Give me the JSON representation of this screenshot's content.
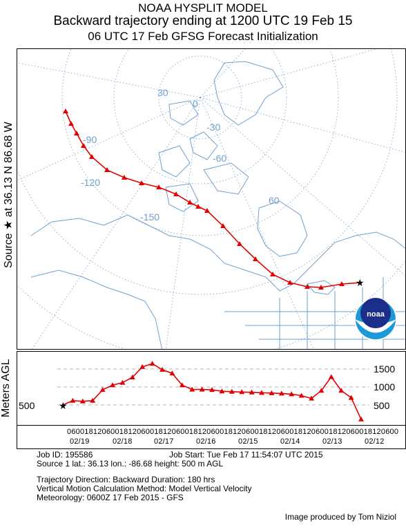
{
  "header": {
    "line1": "NOAA HYSPLIT MODEL",
    "line2": "Backward trajectory ending at 1200 UTC 19 Feb 15",
    "line3": "06 UTC 17 Feb    GFSG  Forecast Initialization"
  },
  "side_labels": {
    "source_line": "Source ★ at  36.13 N  86.68 W",
    "height_axis": "Meters AGL"
  },
  "map": {
    "grid_labels": [
      "30",
      "0",
      "-30",
      "-60",
      "-90",
      "-120",
      "-150",
      "60"
    ],
    "colors": {
      "coast": "#6f9fd0",
      "grid": "#6f9fd0",
      "trajectory": "#e00000",
      "source_marker": "#000000"
    },
    "logo_text": "noaa"
  },
  "height_chart": {
    "ticks": [
      "1500",
      "1000",
      "500"
    ],
    "start_label": "500",
    "series": [
      {
        "t": 0,
        "h": 500
      },
      {
        "t": 6,
        "h": 620
      },
      {
        "t": 12,
        "h": 600
      },
      {
        "t": 18,
        "h": 620
      },
      {
        "t": 24,
        "h": 920
      },
      {
        "t": 30,
        "h": 1050
      },
      {
        "t": 36,
        "h": 1120
      },
      {
        "t": 42,
        "h": 1270
      },
      {
        "t": 48,
        "h": 1560
      },
      {
        "t": 54,
        "h": 1650
      },
      {
        "t": 60,
        "h": 1480
      },
      {
        "t": 66,
        "h": 1380
      },
      {
        "t": 72,
        "h": 1050
      },
      {
        "t": 78,
        "h": 930
      },
      {
        "t": 84,
        "h": 930
      },
      {
        "t": 90,
        "h": 920
      },
      {
        "t": 96,
        "h": 880
      },
      {
        "t": 102,
        "h": 870
      },
      {
        "t": 108,
        "h": 860
      },
      {
        "t": 114,
        "h": 850
      },
      {
        "t": 120,
        "h": 840
      },
      {
        "t": 126,
        "h": 830
      },
      {
        "t": 132,
        "h": 820
      },
      {
        "t": 138,
        "h": 800
      },
      {
        "t": 144,
        "h": 760
      },
      {
        "t": 150,
        "h": 680
      },
      {
        "t": 156,
        "h": 900
      },
      {
        "t": 162,
        "h": 1280
      },
      {
        "t": 168,
        "h": 900
      },
      {
        "t": 174,
        "h": 700
      },
      {
        "t": 180,
        "h": 100
      }
    ]
  },
  "time_axis": {
    "hours_row": "0600181206001812060018120600181206001812060018120600181206001812060018120600",
    "dates": [
      "02/19",
      "02/18",
      "02/17",
      "02/16",
      "02/15",
      "02/14",
      "02/13",
      "02/12"
    ]
  },
  "info": {
    "job_id": "Job ID: 195586",
    "job_start": "Job Start: Tue Feb 17 11:54:07 UTC 2015",
    "source_line": "Source 1     lat.: 36.13    lon.: -86.68     height: 500 m AGL",
    "direction": "Trajectory Direction: Backward       Duration: 180 hrs",
    "vertical": "Vertical Motion Calculation Method:        Model Vertical Velocity",
    "meteorology": "Meteorology: 0600Z 17 Feb 2015 - GFS"
  },
  "credit": "Image produced by Tom Niziol"
}
